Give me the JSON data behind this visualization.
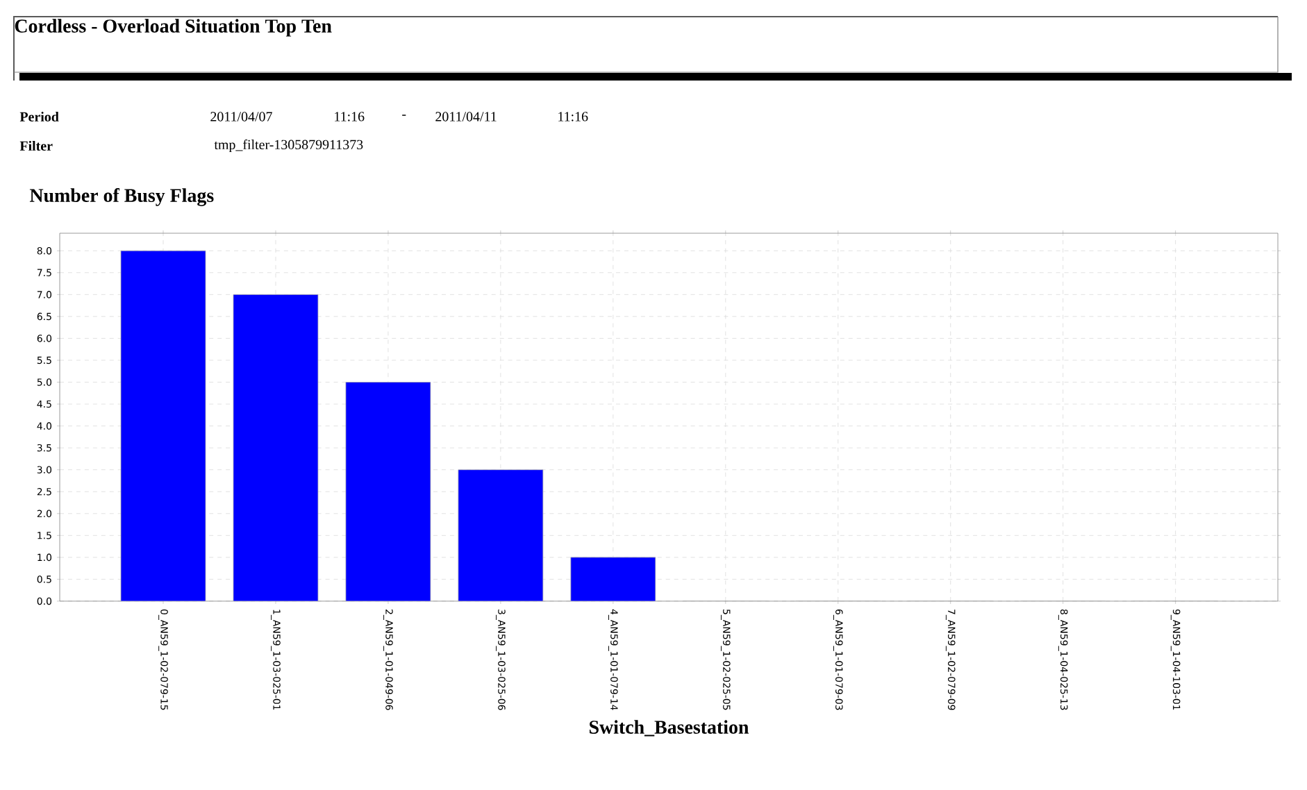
{
  "chart_data": {
    "type": "bar",
    "title": "Cordless - Overload Situation Top Ten",
    "subtitle": "Number of Busy Flags",
    "annotations": [
      "Period",
      "2011/04/07",
      "11:16",
      "-",
      "2011/04/11",
      "11:16",
      "Filter",
      "tmp_filter-1305879911373"
    ],
    "xlabel": "Switch_Basestation",
    "categories": [
      "0_AN59_1-02-079-15",
      "1_AN59_1-03-025-01",
      "2_AN59_1-01-049-06",
      "3_AN59_1-03-025-06",
      "4_AN59_1-01-079-14",
      "5_AN59_1-02-025-05",
      "6_AN59_1-01-079-03",
      "7_AN59_1-02-079-09",
      "8_AN59_1-04-025-13",
      "9_AN59_1-04-103-01"
    ],
    "values": [
      8,
      7,
      5,
      3,
      1,
      0,
      0,
      0,
      0,
      0
    ],
    "color": "#0000ff",
    "ylim": [
      0,
      8.4
    ],
    "yticks": [
      {
        "value": 0,
        "label": "0.0"
      },
      {
        "value": 0.5,
        "label": "0.5"
      },
      {
        "value": 1,
        "label": "1.0"
      },
      {
        "value": 1.5,
        "label": "1.5"
      },
      {
        "value": 2,
        "label": "2.0"
      },
      {
        "value": 2.5,
        "label": "2.5"
      },
      {
        "value": 3,
        "label": "3.0"
      },
      {
        "value": 3.5,
        "label": "3.5"
      },
      {
        "value": 4,
        "label": "4.0"
      },
      {
        "value": 4.5,
        "label": "4.5"
      },
      {
        "value": 5,
        "label": "5.0"
      },
      {
        "value": 5.5,
        "label": "5.5"
      },
      {
        "value": 6,
        "label": "6.0"
      },
      {
        "value": 6.5,
        "label": "6.5"
      },
      {
        "value": 7,
        "label": "7.0"
      },
      {
        "value": 7.5,
        "label": "7.5"
      },
      {
        "value": 8,
        "label": "8.0"
      }
    ],
    "grid": true
  }
}
